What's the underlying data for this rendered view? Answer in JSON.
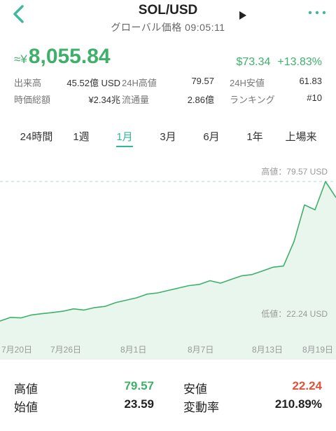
{
  "header": {
    "title": "SOL/USD",
    "subtitle": "グローバル価格 09:05:11",
    "back_icon": "chevron-left-icon",
    "play_icon": "play-icon",
    "more_icon": "more-dots-icon"
  },
  "price": {
    "approx_symbol": "≈¥",
    "value": "8,055.84",
    "change_usd": "$73.34",
    "change_pct": "+13.83%"
  },
  "stats": [
    {
      "label": "出来高",
      "value": "45.52億 USD",
      "label2": "24H高値",
      "value2": "79.57",
      "label3": "24H安値",
      "value3": "61.83"
    },
    {
      "label": "時価総額",
      "value": "¥2.34兆",
      "label2": "流通量",
      "value2": "2.86億",
      "label3": "ランキング",
      "value3": "#10"
    }
  ],
  "tabs": [
    "24時間",
    "1週",
    "1月",
    "3月",
    "6月",
    "1年",
    "上場来"
  ],
  "active_tab": "1月",
  "chart_data": {
    "type": "area",
    "high_label": "高値：",
    "high_value": "79.57 USD",
    "low_label": "低値：",
    "low_value": "22.24 USD",
    "x_ticks": [
      "7月20日",
      "7月26日",
      "8月1日",
      "8月7日",
      "8月13日",
      "8月19日"
    ],
    "x": [
      "7/19",
      "7/20",
      "7/21",
      "7/22",
      "7/23",
      "7/24",
      "7/25",
      "7/26",
      "7/27",
      "7/28",
      "7/29",
      "7/30",
      "7/31",
      "8/1",
      "8/2",
      "8/3",
      "8/4",
      "8/5",
      "8/6",
      "8/7",
      "8/8",
      "8/9",
      "8/10",
      "8/11",
      "8/12",
      "8/13",
      "8/14",
      "8/15",
      "8/16",
      "8/17",
      "8/18",
      "8/19",
      "8/20"
    ],
    "values": [
      22.5,
      24.0,
      23.8,
      25.0,
      25.5,
      26.0,
      26.5,
      27.5,
      27.0,
      28.0,
      28.5,
      30.0,
      31.0,
      32.0,
      33.5,
      34.0,
      35.0,
      36.0,
      37.0,
      37.5,
      39.0,
      38.0,
      39.5,
      41.0,
      41.5,
      43.0,
      44.5,
      45.0,
      55.0,
      70.0,
      68.0,
      79.57,
      73.0
    ],
    "ylim": [
      22.24,
      79.57
    ],
    "colors": {
      "line": "#3fb06a",
      "fill": "#e9f6ee",
      "dash": "#a8dfc8"
    }
  },
  "footer": {
    "high_label": "高値",
    "high_value": "79.57",
    "low_label": "安値",
    "low_value": "22.24",
    "open_label": "始値",
    "open_value": "23.59",
    "change_label": "変動率",
    "change_value": "210.89%"
  }
}
